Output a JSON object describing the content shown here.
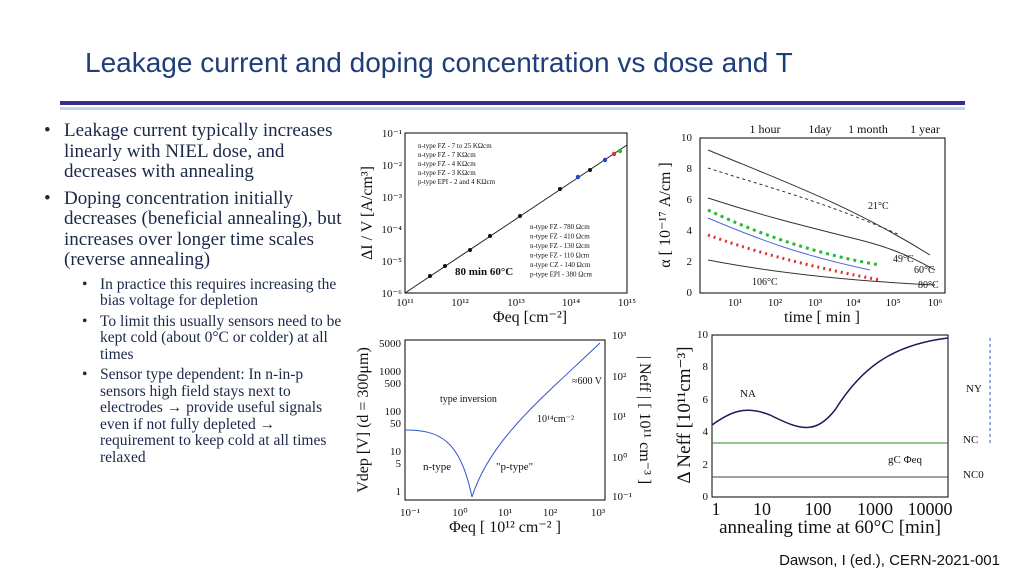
{
  "header": {
    "title": "Leakage current and doping concentration vs dose and T"
  },
  "bullets": [
    {
      "text": "Leakage current typically increases linearly with NIEL dose, and decreases with annealing",
      "sub": []
    },
    {
      "text": "Doping concentration initially decreases (beneficial annealing), but increases over longer time scales (reverse annealing)",
      "sub": [
        "In practice this requires increasing the bias voltage for depletion",
        "To limit this usually sensors need to be kept cold (about 0°C or colder) at all times",
        "Sensor type dependent: In n-in-p sensors high field stays next to electrodes → provide useful signals even if not fully depleted → requirement to keep cold at all times relaxed"
      ]
    }
  ],
  "figures": [
    {
      "ylabel": "ΔI / V  [A/cm³]",
      "xlabel": "Φeq [cm⁻²]",
      "yticks": [
        "10⁻⁶",
        "10⁻⁵",
        "10⁻⁴",
        "10⁻³",
        "10⁻²",
        "10⁻¹"
      ],
      "xticks": [
        "10¹¹",
        "10¹²",
        "10¹³",
        "10¹⁴",
        "10¹⁵"
      ],
      "legend": [
        "n-type FZ - 7 to 25 KΩcm",
        "n-type FZ - 7 KΩcm",
        "n-type FZ - 4 KΩcm",
        "n-type FZ - 3 KΩcm",
        "p-type EPI - 2 and 4 KΩcm",
        "n-type FZ - 780 Ωcm",
        "n-type FZ - 410 Ωcm",
        "n-type FZ - 130 Ωcm",
        "n-type FZ - 110 Ωcm",
        "n-type CZ - 140 Ωcm",
        "p-type EPI - 380 Ωcm"
      ],
      "annotations": [
        "80 min 60°C"
      ]
    },
    {
      "ylabel": "α [ 10⁻¹⁷ A/cm ]",
      "xlabel": "time  [ min ]",
      "yticks": [
        "0",
        "2",
        "4",
        "6",
        "8",
        "10"
      ],
      "xticks": [
        "10¹",
        "10²",
        "10³",
        "10⁴",
        "10⁵",
        "10⁶"
      ],
      "top_labels": [
        "1 hour",
        "1day",
        "1 month",
        "1 year"
      ],
      "annotations": [
        "21°C",
        "49°C",
        "60°C",
        "80°C",
        "106°C"
      ]
    },
    {
      "ylabel": "Vdep [V]  (d = 300μm)",
      "xlabel": "Φeq  [ 10¹² cm⁻² ]",
      "y2label": "| Neff |  [ 10¹¹ cm⁻³ ]",
      "yticks": [
        "1",
        "5",
        "10",
        "50",
        "100",
        "500",
        "1000",
        "5000"
      ],
      "y2ticks": [
        "10⁻¹",
        "10⁰",
        "10¹",
        "10²",
        "10³"
      ],
      "xticks": [
        "10⁻¹",
        "10⁰",
        "10¹",
        "10²",
        "10³"
      ],
      "annotations": [
        "type inversion",
        "≈600 V",
        "10¹⁴cm⁻²",
        "n-type",
        "\"p-type\""
      ]
    },
    {
      "ylabel": "Δ Neff [10¹¹cm⁻³]",
      "xlabel": "annealing time at 60°C [min]",
      "yticks": [
        "0",
        "2",
        "4",
        "6",
        "8",
        "10"
      ],
      "xticks": [
        "1",
        "10",
        "100",
        "1000",
        "10000"
      ],
      "annotations": [
        "NA",
        "NY",
        "NC",
        "NC0",
        "gC Φeq"
      ]
    }
  ],
  "footer": {
    "citation": "Dawson, I (ed.), CERN-2021-001"
  }
}
